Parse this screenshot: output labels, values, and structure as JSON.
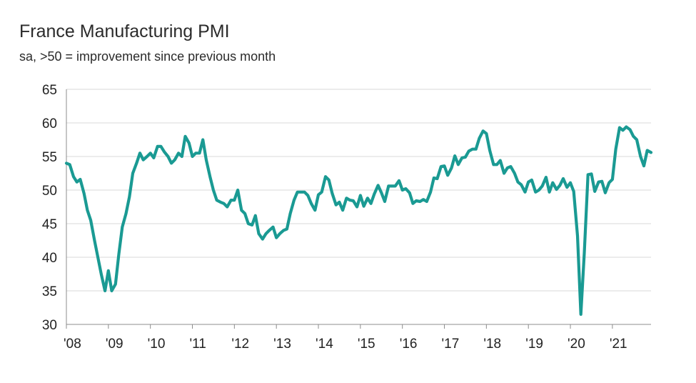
{
  "chart_data": {
    "type": "line",
    "title": "France Manufacturing PMI",
    "subtitle": "sa, >50 = improvement since previous month",
    "xlabel": "",
    "ylabel": "",
    "ylim": [
      30,
      65
    ],
    "xlim": [
      2008.0,
      2021.92
    ],
    "y_ticks": [
      30,
      35,
      40,
      45,
      50,
      55,
      60,
      65
    ],
    "x_ticks": [
      {
        "x": 2008,
        "label": "'08"
      },
      {
        "x": 2009,
        "label": "'09"
      },
      {
        "x": 2010,
        "label": "'10"
      },
      {
        "x": 2011,
        "label": "'11"
      },
      {
        "x": 2012,
        "label": "'12"
      },
      {
        "x": 2013,
        "label": "'13"
      },
      {
        "x": 2014,
        "label": "'14"
      },
      {
        "x": 2015,
        "label": "'15"
      },
      {
        "x": 2016,
        "label": "'16"
      },
      {
        "x": 2017,
        "label": "'17"
      },
      {
        "x": 2018,
        "label": "'18"
      },
      {
        "x": 2019,
        "label": "'19"
      },
      {
        "x": 2020,
        "label": "'20"
      },
      {
        "x": 2021,
        "label": "'21"
      }
    ],
    "grid": "horizontal",
    "legend": "none",
    "line_color": "#1a9a93",
    "grid_color": "#d9d9d9",
    "series": [
      {
        "x": [
          2008.0,
          2008.08,
          2008.17,
          2008.25,
          2008.33,
          2008.42,
          2008.5,
          2008.58,
          2008.67,
          2008.75,
          2008.83,
          2008.92,
          2009.0,
          2009.08,
          2009.17,
          2009.25,
          2009.33,
          2009.42,
          2009.5,
          2009.58,
          2009.67,
          2009.75,
          2009.83,
          2009.92,
          2010.0,
          2010.08,
          2010.17,
          2010.25,
          2010.33,
          2010.42,
          2010.5,
          2010.58,
          2010.67,
          2010.75,
          2010.83,
          2010.92,
          2011.0,
          2011.08,
          2011.17,
          2011.25,
          2011.33,
          2011.42,
          2011.5,
          2011.58,
          2011.67,
          2011.75,
          2011.83,
          2011.92,
          2012.0,
          2012.08,
          2012.17,
          2012.25,
          2012.33,
          2012.42,
          2012.5,
          2012.58,
          2012.67,
          2012.75,
          2012.83,
          2012.92,
          2013.0,
          2013.08,
          2013.17,
          2013.25,
          2013.33,
          2013.42,
          2013.5,
          2013.58,
          2013.67,
          2013.75,
          2013.83,
          2013.92,
          2014.0,
          2014.08,
          2014.17,
          2014.25,
          2014.33,
          2014.42,
          2014.5,
          2014.58,
          2014.67,
          2014.75,
          2014.83,
          2014.92,
          2015.0,
          2015.08,
          2015.17,
          2015.25,
          2015.33,
          2015.42,
          2015.5,
          2015.58,
          2015.67,
          2015.75,
          2015.83,
          2015.92,
          2016.0,
          2016.08,
          2016.17,
          2016.25,
          2016.33,
          2016.42,
          2016.5,
          2016.58,
          2016.67,
          2016.75,
          2016.83,
          2016.92,
          2017.0,
          2017.08,
          2017.17,
          2017.25,
          2017.33,
          2017.42,
          2017.5,
          2017.58,
          2017.67,
          2017.75,
          2017.83,
          2017.92,
          2018.0,
          2018.08,
          2018.17,
          2018.25,
          2018.33,
          2018.42,
          2018.5,
          2018.58,
          2018.67,
          2018.75,
          2018.83,
          2018.92,
          2019.0,
          2019.08,
          2019.17,
          2019.25,
          2019.33,
          2019.42,
          2019.5,
          2019.58,
          2019.67,
          2019.75,
          2019.83,
          2019.92,
          2020.0,
          2020.08,
          2020.17,
          2020.25,
          2020.33,
          2020.42,
          2020.5,
          2020.58,
          2020.67,
          2020.75,
          2020.83,
          2020.92,
          2021.0,
          2021.08,
          2021.17,
          2021.25,
          2021.33,
          2021.42,
          2021.5,
          2021.58,
          2021.67,
          2021.75,
          2021.83,
          2021.92
        ],
        "values": [
          54.0,
          53.8,
          52.0,
          51.2,
          51.6,
          49.5,
          47.0,
          45.5,
          42.5,
          40.0,
          37.5,
          35.0,
          38.0,
          35.0,
          36.0,
          40.5,
          44.5,
          46.5,
          49.0,
          52.5,
          54.0,
          55.5,
          54.5,
          55.0,
          55.5,
          54.8,
          56.5,
          56.5,
          55.7,
          55.0,
          54.0,
          54.5,
          55.5,
          55.0,
          58.0,
          57.0,
          55.0,
          55.5,
          55.5,
          57.5,
          54.5,
          52.0,
          50.0,
          48.5,
          48.2,
          48.0,
          47.5,
          48.5,
          48.5,
          50.0,
          47.0,
          46.5,
          45.0,
          44.8,
          46.2,
          43.5,
          42.7,
          43.5,
          44.0,
          44.5,
          42.9,
          43.5,
          44.0,
          44.2,
          46.5,
          48.5,
          49.7,
          49.7,
          49.7,
          49.2,
          48.0,
          47.0,
          49.3,
          49.7,
          52.0,
          51.5,
          49.5,
          47.8,
          48.2,
          47.0,
          48.8,
          48.5,
          48.4,
          47.5,
          49.2,
          47.6,
          48.8,
          48.0,
          49.4,
          50.7,
          49.6,
          48.3,
          50.6,
          50.6,
          50.6,
          51.4,
          50.0,
          50.2,
          49.6,
          48.0,
          48.4,
          48.3,
          48.6,
          48.3,
          49.7,
          51.8,
          51.7,
          53.5,
          53.6,
          52.2,
          53.3,
          55.1,
          53.8,
          54.8,
          54.9,
          55.8,
          56.1,
          56.1,
          57.7,
          58.8,
          58.4,
          55.9,
          53.8,
          53.8,
          54.4,
          52.5,
          53.3,
          53.5,
          52.5,
          51.2,
          50.8,
          49.7,
          51.2,
          51.5,
          49.7,
          50.0,
          50.6,
          51.9,
          49.7,
          51.1,
          50.1,
          50.7,
          51.7,
          50.4,
          51.1,
          49.8,
          43.2,
          31.5,
          40.6,
          52.3,
          52.4,
          49.8,
          51.2,
          51.3,
          49.6,
          51.1,
          51.6,
          56.1,
          59.3,
          58.9,
          59.4,
          59.0,
          58.0,
          57.5,
          55.0,
          53.6,
          55.9,
          55.6
        ]
      }
    ]
  }
}
